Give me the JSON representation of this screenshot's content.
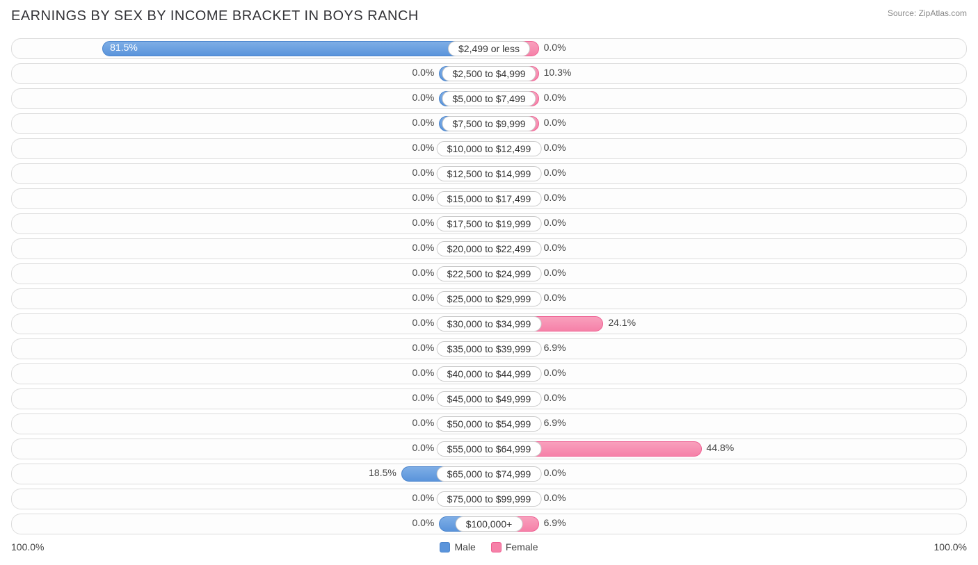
{
  "title": "EARNINGS BY SEX BY INCOME BRACKET IN BOYS RANCH",
  "source": "Source: ZipAtlas.com",
  "chart": {
    "type": "diverging-bar",
    "male_color": "#5a94db",
    "male_border": "#4a84cc",
    "female_color": "#f681a8",
    "female_border": "#ee5f92",
    "row_border": "#dcdcdc",
    "row_bg": "#fdfdfd",
    "label_fontsize": 14,
    "title_fontsize": 20,
    "min_bar_pct": 10.5,
    "axis_left": "100.0%",
    "axis_right": "100.0%",
    "rows": [
      {
        "label": "$2,499 or less",
        "male": 81.5,
        "female": 0.0
      },
      {
        "label": "$2,500 to $4,999",
        "male": 0.0,
        "female": 10.3
      },
      {
        "label": "$5,000 to $7,499",
        "male": 0.0,
        "female": 0.0
      },
      {
        "label": "$7,500 to $9,999",
        "male": 0.0,
        "female": 0.0
      },
      {
        "label": "$10,000 to $12,499",
        "male": 0.0,
        "female": 0.0
      },
      {
        "label": "$12,500 to $14,999",
        "male": 0.0,
        "female": 0.0
      },
      {
        "label": "$15,000 to $17,499",
        "male": 0.0,
        "female": 0.0
      },
      {
        "label": "$17,500 to $19,999",
        "male": 0.0,
        "female": 0.0
      },
      {
        "label": "$20,000 to $22,499",
        "male": 0.0,
        "female": 0.0
      },
      {
        "label": "$22,500 to $24,999",
        "male": 0.0,
        "female": 0.0
      },
      {
        "label": "$25,000 to $29,999",
        "male": 0.0,
        "female": 0.0
      },
      {
        "label": "$30,000 to $34,999",
        "male": 0.0,
        "female": 24.1
      },
      {
        "label": "$35,000 to $39,999",
        "male": 0.0,
        "female": 6.9
      },
      {
        "label": "$40,000 to $44,999",
        "male": 0.0,
        "female": 0.0
      },
      {
        "label": "$45,000 to $49,999",
        "male": 0.0,
        "female": 0.0
      },
      {
        "label": "$50,000 to $54,999",
        "male": 0.0,
        "female": 6.9
      },
      {
        "label": "$55,000 to $64,999",
        "male": 0.0,
        "female": 44.8
      },
      {
        "label": "$65,000 to $74,999",
        "male": 18.5,
        "female": 0.0
      },
      {
        "label": "$75,000 to $99,999",
        "male": 0.0,
        "female": 0.0
      },
      {
        "label": "$100,000+",
        "male": 0.0,
        "female": 6.9
      }
    ]
  },
  "legend": {
    "male": "Male",
    "female": "Female"
  }
}
